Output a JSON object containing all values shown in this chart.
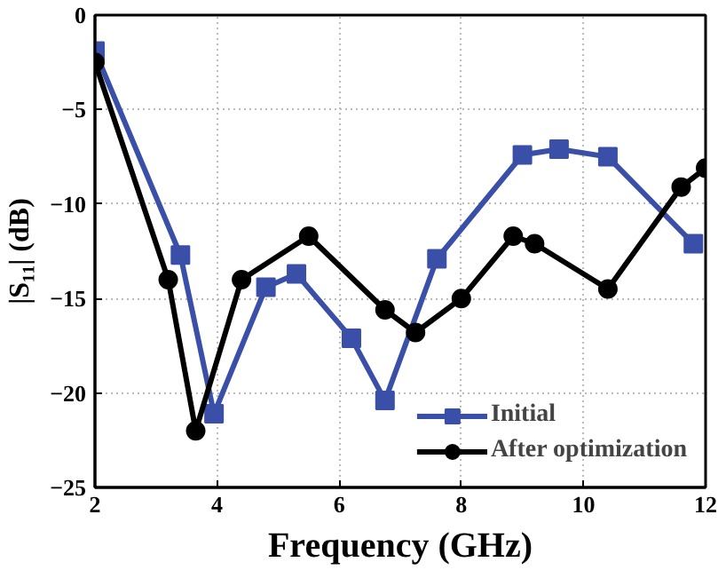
{
  "chart_data": {
    "type": "line",
    "xlabel": "Frequency (GHz)",
    "ylabel": "|S₁₁| (dB)",
    "xlim": [
      2,
      12
    ],
    "ylim": [
      -25,
      0
    ],
    "xticks": [
      2,
      4,
      6,
      8,
      10,
      12
    ],
    "yticks": [
      -25,
      -20,
      -15,
      -10,
      -5,
      0
    ],
    "grid": true,
    "legend": "bottom right",
    "line_style": "solid",
    "series": [
      {
        "name": "Initial",
        "color": "#3a4fa8",
        "marker": "square",
        "x": [
          2,
          3.4,
          3.95,
          4.8,
          5.3,
          6.2,
          6.75,
          7.6,
          9,
          9.6,
          10.4,
          11.8
        ],
        "values": [
          -1.9,
          -12.7,
          -21.1,
          -14.4,
          -13.7,
          -17.1,
          -20.4,
          -12.9,
          -7.4,
          -7.1,
          -7.5,
          -12.1
        ]
      },
      {
        "name": "After optimization",
        "color": "#000000",
        "marker": "circle",
        "x": [
          2,
          3.2,
          3.65,
          4.4,
          5.5,
          6.75,
          7.25,
          8,
          8.85,
          9.2,
          10.4,
          11.6,
          12
        ],
        "values": [
          -2.5,
          -14,
          -22,
          -14,
          -11.7,
          -15.6,
          -16.8,
          -15,
          -11.7,
          -12.1,
          -14.5,
          -9.1,
          -8.1
        ]
      }
    ]
  }
}
